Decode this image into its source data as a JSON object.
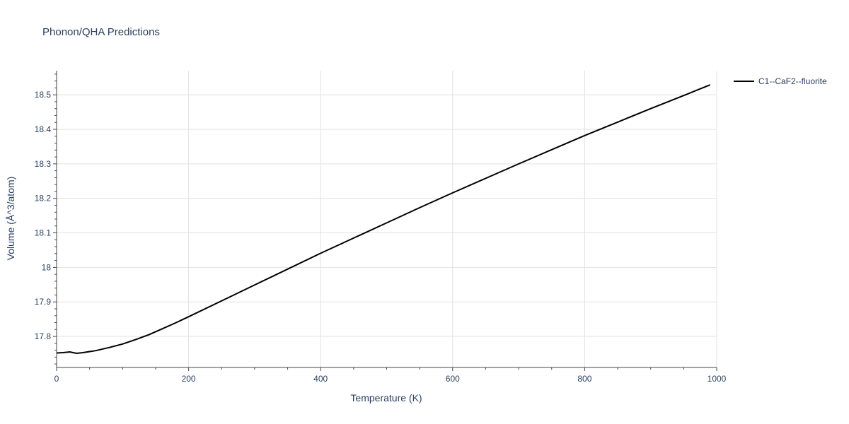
{
  "chart_data": {
    "type": "line",
    "title": "Phonon/QHA Predictions",
    "xlabel": "Temperature (K)",
    "ylabel": "Volume (Å^3/atom)",
    "xlim": [
      0,
      1000
    ],
    "ylim": [
      17.71,
      18.57
    ],
    "x_ticks": [
      0,
      200,
      400,
      600,
      800,
      1000
    ],
    "x_tick_labels": [
      "0",
      "200",
      "400",
      "600",
      "800",
      "1000"
    ],
    "y_ticks": [
      17.8,
      17.9,
      18.0,
      18.1,
      18.2,
      18.3,
      18.4,
      18.5
    ],
    "y_tick_labels": [
      "17.8",
      "17.9",
      "18",
      "18.1",
      "18.2",
      "18.3",
      "18.4",
      "18.5"
    ],
    "grid": true,
    "legend_position": "top-right",
    "series": [
      {
        "name": "C1--CaF2--fluorite",
        "color": "#000000",
        "x": [
          0,
          10,
          20,
          30,
          40,
          60,
          80,
          100,
          120,
          140,
          160,
          180,
          200,
          250,
          300,
          350,
          400,
          450,
          500,
          550,
          600,
          650,
          700,
          750,
          800,
          850,
          900,
          950,
          990
        ],
        "y": [
          17.752,
          17.753,
          17.755,
          17.751,
          17.753,
          17.759,
          17.768,
          17.778,
          17.791,
          17.805,
          17.822,
          17.839,
          17.857,
          17.903,
          17.949,
          17.995,
          18.041,
          18.085,
          18.129,
          18.173,
          18.216,
          18.258,
          18.3,
          18.341,
          18.382,
          18.421,
          18.46,
          18.498,
          18.529
        ]
      }
    ]
  }
}
